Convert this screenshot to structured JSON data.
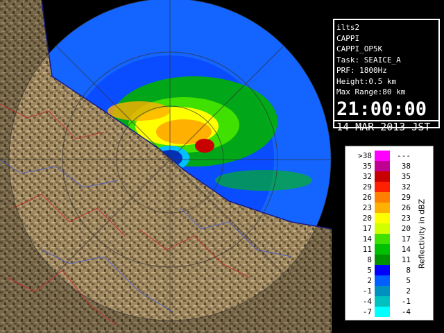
{
  "info": {
    "lines": [
      "ilts2",
      "CAPPI",
      "CAPPI_OP5K",
      "Task: SEAICE_A",
      "PRF: 1800Hz",
      "Height:0.5 km",
      "Max Range:80 km"
    ],
    "time": "21:00:00",
    "date": "14 MAR 2013 JST"
  },
  "legend": {
    "title": "Reflectivity in dBZ",
    "rows": [
      {
        "lower": ">38",
        "upper": "---",
        "color": "#ff00ff"
      },
      {
        "lower": "35",
        "upper": "38",
        "color": "#c00090"
      },
      {
        "lower": "32",
        "upper": "35",
        "color": "#c80000"
      },
      {
        "lower": "29",
        "upper": "32",
        "color": "#ff2000"
      },
      {
        "lower": "26",
        "upper": "29",
        "color": "#ff8000"
      },
      {
        "lower": "23",
        "upper": "26",
        "color": "#ffb000"
      },
      {
        "lower": "20",
        "upper": "23",
        "color": "#ffff00"
      },
      {
        "lower": "17",
        "upper": "20",
        "color": "#d0ff00"
      },
      {
        "lower": "14",
        "upper": "17",
        "color": "#40e000"
      },
      {
        "lower": "11",
        "upper": "14",
        "color": "#00c000"
      },
      {
        "lower": "8",
        "upper": "11",
        "color": "#009000"
      },
      {
        "lower": "5",
        "upper": "8",
        "color": "#0000ff"
      },
      {
        "lower": "2",
        "upper": "5",
        "color": "#0060ff"
      },
      {
        "lower": "-1",
        "upper": "2",
        "color": "#0090c0"
      },
      {
        "lower": "-4",
        "upper": "-1",
        "color": "#00c0c0"
      },
      {
        "lower": "-7",
        "upper": "-4",
        "color": "#00ffff"
      }
    ]
  }
}
